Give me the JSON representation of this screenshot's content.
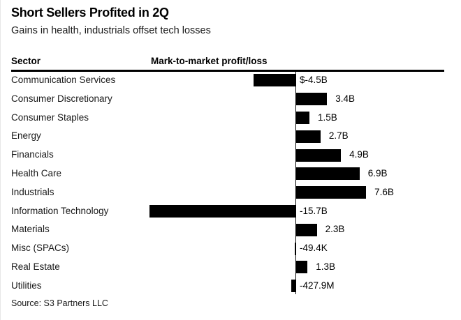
{
  "header": {
    "title": "Short Sellers Profited in 2Q",
    "subtitle": "Gains in health, industrials offset tech losses"
  },
  "columns": {
    "sector": "Sector",
    "value": "Mark-to-market profit/loss"
  },
  "source": "Source: S3 Partners LLC",
  "colors": {
    "bar": "#000000",
    "rule": "#000000",
    "text": "#000000",
    "background": "#ffffff"
  },
  "chart_data": {
    "type": "bar",
    "orientation": "horizontal",
    "title": "Short Sellers Profited in 2Q",
    "subtitle": "Gains in health, industrials offset tech losses",
    "category_axis_label": "Sector",
    "value_axis_label": "Mark-to-market profit/loss",
    "unit": "USD",
    "categories": [
      "Communication Services",
      "Consumer Discretionary",
      "Consumer Staples",
      "Energy",
      "Financials",
      "Health Care",
      "Industrials",
      "Information Technology",
      "Materials",
      "Misc (SPACs)",
      "Real Estate",
      "Utilities"
    ],
    "values_in_billions": [
      -4.5,
      3.4,
      1.5,
      2.7,
      4.9,
      6.9,
      7.6,
      -15.7,
      2.3,
      -4.94e-05,
      1.3,
      -0.4279
    ],
    "value_labels": [
      "$-4.5B",
      "3.4B",
      "1.5B",
      "2.7B",
      "4.9B",
      "6.9B",
      "7.6B",
      "-15.7B",
      "2.3B",
      "-49.4K",
      "1.3B",
      "-427.9M"
    ],
    "xlim": [
      -16,
      8
    ],
    "grid": false,
    "legend": false,
    "bar_color": "#000000",
    "source": "Source: S3 Partners LLC"
  }
}
